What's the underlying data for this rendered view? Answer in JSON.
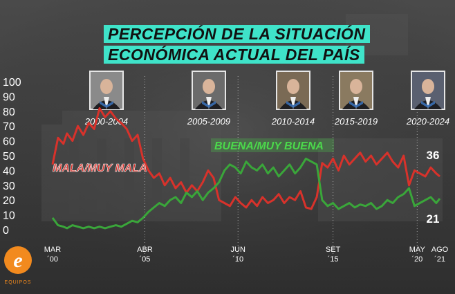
{
  "title": {
    "line1": "PERCEPCIÓN DE LA SITUACIÓN",
    "line2": "ECONÓMICA ACTUAL DEL PAÍS"
  },
  "colors": {
    "accent": "#3fe3c9",
    "mala": "#d8322b",
    "buena": "#3aa63a",
    "buena_label_bg": "#4bd94b"
  },
  "periods": [
    {
      "label": "2000-2004",
      "icon": "portrait-icon"
    },
    {
      "label": "2005-2009",
      "icon": "portrait-icon"
    },
    {
      "label": "2010-2014",
      "icon": "portrait-icon"
    },
    {
      "label": "2015-2019",
      "icon": "portrait-icon"
    },
    {
      "label": "2020-2024",
      "icon": "portrait-icon"
    }
  ],
  "logo": {
    "letter": "e",
    "text": "EQUIPOS"
  },
  "chart_data": {
    "type": "line",
    "ylim": [
      0,
      100
    ],
    "yticks": [
      0,
      10,
      20,
      30,
      40,
      50,
      60,
      70,
      80,
      90,
      100
    ],
    "xlim": [
      2000.2,
      2021.6
    ],
    "xticks": [
      {
        "value": 2000.2,
        "line1": "MAR",
        "line2": "´00"
      },
      {
        "value": 2005.3,
        "line1": "ABR",
        "line2": "´05"
      },
      {
        "value": 2010.45,
        "line1": "JUN",
        "line2": "´10"
      },
      {
        "value": 2015.7,
        "line1": "SET",
        "line2": "´15"
      },
      {
        "value": 2020.35,
        "line1": "MAY",
        "line2": "´20"
      },
      {
        "value": 2021.6,
        "line1": "AGO",
        "line2": "´21"
      }
    ],
    "series": [
      {
        "name": "MALA/MUY MALA",
        "last_value_label": "36",
        "x": [
          2000.2,
          2000.5,
          2000.8,
          2001.0,
          2001.3,
          2001.6,
          2001.9,
          2002.2,
          2002.5,
          2002.8,
          2003.1,
          2003.4,
          2003.7,
          2004.0,
          2004.3,
          2004.6,
          2004.9,
          2005.2,
          2005.5,
          2005.8,
          2006.1,
          2006.4,
          2006.7,
          2007.0,
          2007.3,
          2007.6,
          2007.9,
          2008.2,
          2008.5,
          2008.8,
          2009.1,
          2009.4,
          2009.7,
          2010.0,
          2010.3,
          2010.6,
          2010.9,
          2011.2,
          2011.5,
          2011.8,
          2012.1,
          2012.4,
          2012.7,
          2013.0,
          2013.3,
          2013.6,
          2013.9,
          2014.2,
          2014.5,
          2014.8,
          2015.1,
          2015.4,
          2015.7,
          2016.0,
          2016.3,
          2016.6,
          2016.9,
          2017.2,
          2017.5,
          2017.8,
          2018.1,
          2018.4,
          2018.7,
          2019.0,
          2019.3,
          2019.6,
          2019.9,
          2020.2,
          2020.5,
          2020.8,
          2021.1,
          2021.4,
          2021.6
        ],
        "y": [
          44,
          62,
          58,
          65,
          60,
          70,
          64,
          72,
          68,
          82,
          76,
          80,
          75,
          72,
          68,
          60,
          64,
          48,
          40,
          35,
          38,
          30,
          35,
          28,
          32,
          25,
          30,
          26,
          32,
          40,
          35,
          20,
          18,
          16,
          22,
          18,
          15,
          20,
          16,
          22,
          18,
          20,
          24,
          18,
          22,
          20,
          26,
          15,
          14,
          22,
          45,
          42,
          48,
          40,
          50,
          44,
          48,
          52,
          46,
          50,
          44,
          48,
          52,
          46,
          42,
          50,
          30,
          40,
          38,
          36,
          42,
          38,
          36
        ]
      },
      {
        "name": "BUENA/MUY BUENA",
        "last_value_label": "21",
        "x": [
          2000.2,
          2000.5,
          2000.8,
          2001.0,
          2001.3,
          2001.6,
          2001.9,
          2002.2,
          2002.5,
          2002.8,
          2003.1,
          2003.4,
          2003.7,
          2004.0,
          2004.3,
          2004.6,
          2004.9,
          2005.2,
          2005.5,
          2005.8,
          2006.1,
          2006.4,
          2006.7,
          2007.0,
          2007.3,
          2007.6,
          2007.9,
          2008.2,
          2008.5,
          2008.8,
          2009.1,
          2009.4,
          2009.7,
          2010.0,
          2010.3,
          2010.6,
          2010.9,
          2011.2,
          2011.5,
          2011.8,
          2012.1,
          2012.4,
          2012.7,
          2013.0,
          2013.3,
          2013.6,
          2013.9,
          2014.2,
          2014.5,
          2014.8,
          2015.1,
          2015.4,
          2015.7,
          2016.0,
          2016.3,
          2016.6,
          2016.9,
          2017.2,
          2017.5,
          2017.8,
          2018.1,
          2018.4,
          2018.7,
          2019.0,
          2019.3,
          2019.6,
          2019.9,
          2020.2,
          2020.5,
          2020.8,
          2021.1,
          2021.4,
          2021.6
        ],
        "y": [
          8,
          3,
          2,
          1,
          3,
          2,
          1,
          2,
          1,
          2,
          1,
          2,
          3,
          2,
          4,
          6,
          5,
          8,
          12,
          15,
          18,
          16,
          20,
          22,
          18,
          25,
          22,
          26,
          20,
          25,
          28,
          32,
          40,
          44,
          42,
          38,
          46,
          42,
          40,
          44,
          38,
          42,
          36,
          40,
          44,
          38,
          42,
          48,
          46,
          44,
          20,
          16,
          18,
          14,
          16,
          18,
          15,
          17,
          16,
          18,
          14,
          16,
          20,
          18,
          22,
          24,
          28,
          16,
          18,
          20,
          22,
          18,
          21
        ]
      }
    ]
  }
}
